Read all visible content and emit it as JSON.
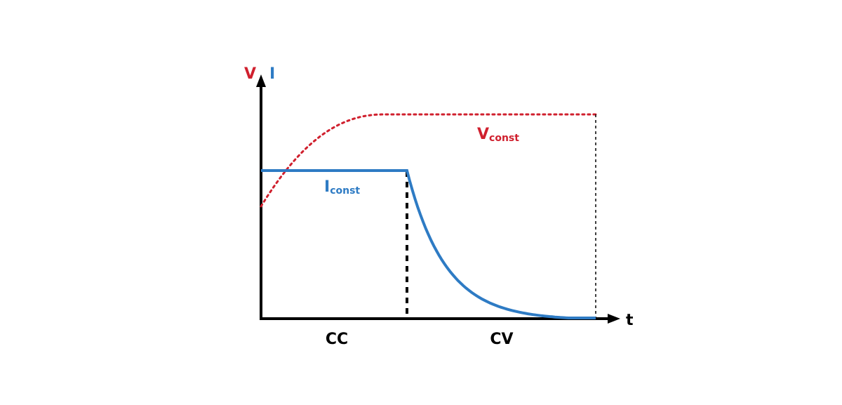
{
  "labels": {
    "v_axis": "V",
    "i_axis": "I",
    "t_axis": "t",
    "v_const_main": "V",
    "v_const_sub": "const",
    "i_const_main": "I",
    "i_const_sub": "const",
    "phase_cc": "CC",
    "phase_cv": "CV"
  },
  "colors": {
    "voltage": "#d0202e",
    "current": "#2e7bc4",
    "axis": "#000000"
  },
  "curves": {
    "voltage_style": "dotted",
    "current_style": "solid",
    "current_decay": "exponential",
    "voltage_rise": "saturating"
  }
}
